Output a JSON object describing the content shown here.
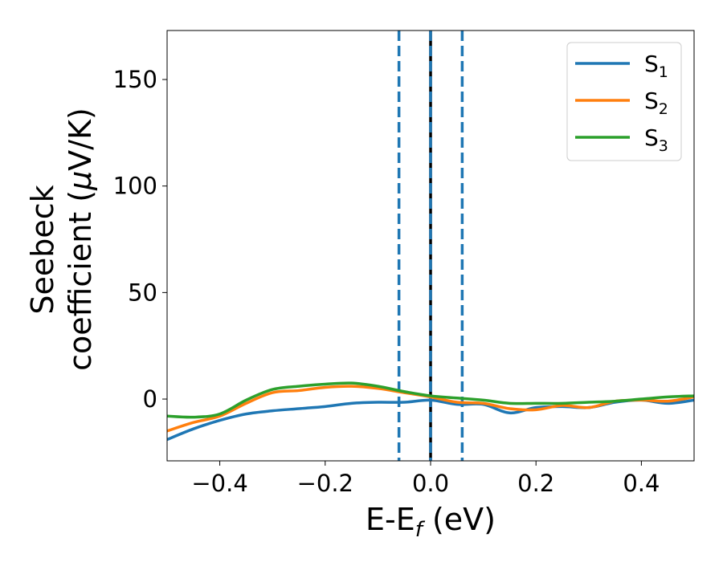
{
  "chart_data": {
    "type": "line",
    "xlabel": {
      "main": "E-E",
      "sub": "f",
      "tail": " (eV)"
    },
    "ylabel": {
      "line1": "Seebeck",
      "line2": "coefficient  (",
      "mu": "μ",
      "line2_tail": "V/K)"
    },
    "xlim": [
      -0.5,
      0.5
    ],
    "ylim": [
      -29,
      173
    ],
    "xticks": [
      {
        "value": -0.4,
        "label": "−0.4"
      },
      {
        "value": -0.2,
        "label": "−0.2"
      },
      {
        "value": 0.0,
        "label": "0.0"
      },
      {
        "value": 0.2,
        "label": "0.2"
      },
      {
        "value": 0.4,
        "label": "0.4"
      }
    ],
    "yticks": [
      {
        "value": 0,
        "label": "0"
      },
      {
        "value": 50,
        "label": "50"
      },
      {
        "value": 100,
        "label": "100"
      },
      {
        "value": 150,
        "label": "150"
      }
    ],
    "legend_position": "top-right",
    "grid": false,
    "vlines": [
      {
        "x": -0.06,
        "style": "dashed",
        "color": "#1f77b4"
      },
      {
        "x": 0.0,
        "style": "solid",
        "color": "#000000"
      },
      {
        "x": 0.0,
        "style": "dashed",
        "color": "#1f77b4"
      },
      {
        "x": 0.06,
        "style": "dashed",
        "color": "#1f77b4"
      }
    ],
    "series": [
      {
        "name": "S",
        "sub": "1",
        "color": "#1f77b4",
        "x": [
          -0.5,
          -0.45,
          -0.4,
          -0.35,
          -0.3,
          -0.25,
          -0.2,
          -0.15,
          -0.1,
          -0.05,
          0.0,
          0.05,
          0.1,
          0.15,
          0.2,
          0.25,
          0.3,
          0.35,
          0.4,
          0.45,
          0.5
        ],
        "y": [
          -19,
          -14,
          -10,
          -7,
          -5.5,
          -4.5,
          -3.5,
          -2,
          -1.5,
          -1.5,
          -0.5,
          -2.5,
          -2.5,
          -6.5,
          -4,
          -3.5,
          -4,
          -1.5,
          -0.5,
          -2,
          -0.5
        ]
      },
      {
        "name": "S",
        "sub": "2",
        "color": "#ff7f0e",
        "x": [
          -0.5,
          -0.45,
          -0.4,
          -0.35,
          -0.3,
          -0.25,
          -0.2,
          -0.15,
          -0.1,
          -0.05,
          0.0,
          0.05,
          0.1,
          0.15,
          0.2,
          0.25,
          0.3,
          0.35,
          0.4,
          0.45,
          0.5
        ],
        "y": [
          -15,
          -11,
          -8,
          -2,
          3,
          4,
          5.5,
          6,
          5,
          3,
          1,
          -1.5,
          -2,
          -4.5,
          -5,
          -3,
          -4,
          -1,
          -0.5,
          -1,
          1
        ]
      },
      {
        "name": "S",
        "sub": "3",
        "color": "#2ca02c",
        "x": [
          -0.5,
          -0.45,
          -0.4,
          -0.35,
          -0.3,
          -0.25,
          -0.2,
          -0.15,
          -0.1,
          -0.05,
          0.0,
          0.05,
          0.1,
          0.15,
          0.2,
          0.25,
          0.3,
          0.35,
          0.4,
          0.45,
          0.5
        ],
        "y": [
          -8,
          -8.5,
          -7,
          -0.5,
          4.5,
          6,
          7,
          7.5,
          6,
          3.5,
          1.5,
          0.5,
          -0.5,
          -2,
          -2,
          -2,
          -1.5,
          -1,
          0,
          1,
          1.5
        ]
      }
    ]
  }
}
